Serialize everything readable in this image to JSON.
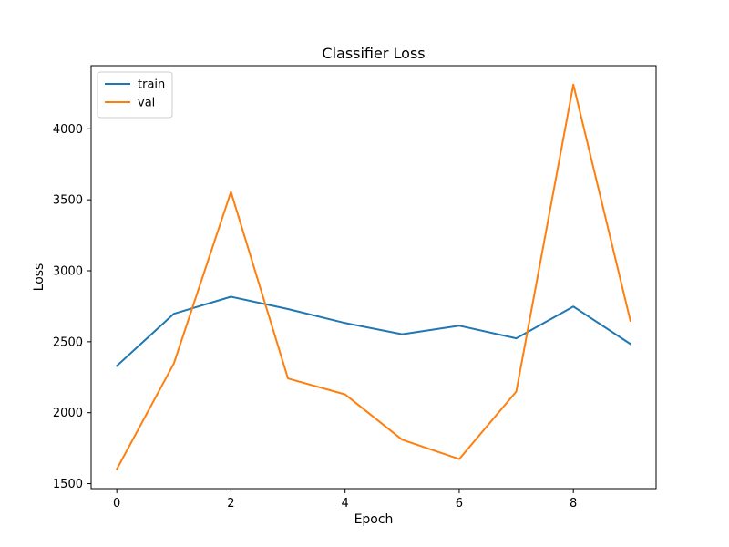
{
  "chart_data": {
    "type": "line",
    "title": "Classifier Loss",
    "xlabel": "Epoch",
    "ylabel": "Loss",
    "x": [
      0,
      1,
      2,
      3,
      4,
      5,
      6,
      7,
      8,
      9
    ],
    "xticks": [
      0,
      2,
      4,
      6,
      8
    ],
    "yticks": [
      1500,
      2000,
      2500,
      3000,
      3500,
      4000
    ],
    "xlim": [
      -0.45,
      9.45
    ],
    "ylim": [
      1465,
      4445
    ],
    "legend_position": "top-left",
    "grid": false,
    "series": [
      {
        "name": "train",
        "color": "#1f77b4",
        "values": [
          2330,
          2697,
          2817,
          2730,
          2632,
          2553,
          2613,
          2524,
          2748,
          2484
        ]
      },
      {
        "name": "val",
        "color": "#ff7f0e",
        "values": [
          1602,
          2347,
          3556,
          2241,
          2129,
          1810,
          1673,
          2149,
          4312,
          2647
        ]
      }
    ]
  }
}
